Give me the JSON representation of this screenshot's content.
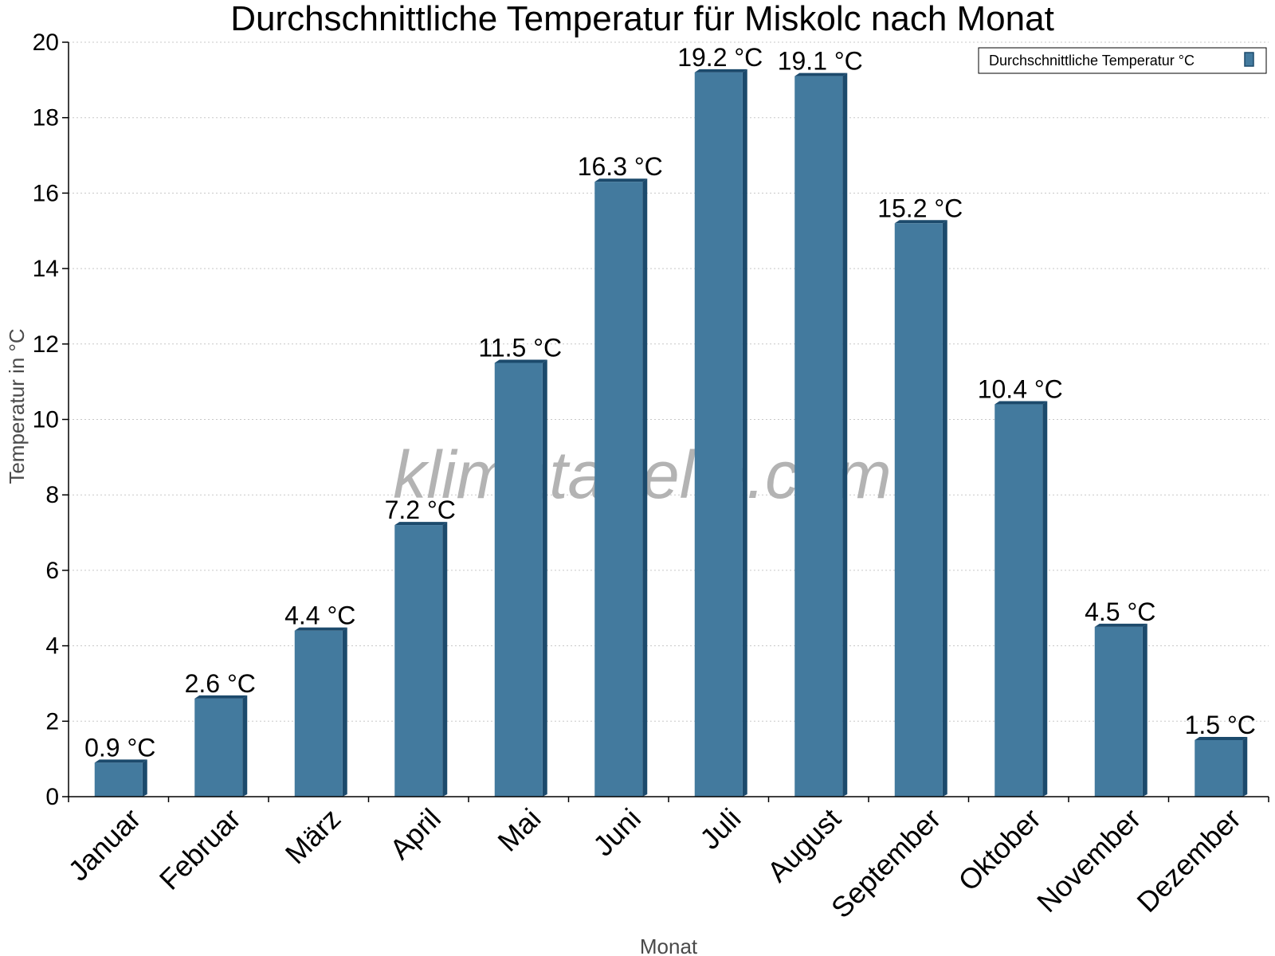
{
  "chart_data": {
    "type": "bar",
    "title": "Durchschnittliche Temperatur für Miskolc nach Monat",
    "xlabel": "Monat",
    "ylabel": "Temperatur in °C",
    "ylim": [
      0,
      20
    ],
    "yticks": [
      0,
      2,
      4,
      6,
      8,
      10,
      12,
      14,
      16,
      18,
      20
    ],
    "grid": true,
    "legend_position": "top-right",
    "categories": [
      "Januar",
      "Februar",
      "März",
      "April",
      "Mai",
      "Juni",
      "Juli",
      "August",
      "September",
      "Oktober",
      "November",
      "Dezember"
    ],
    "series": [
      {
        "name": "Durchschnittliche Temperatur °C",
        "values": [
          0.9,
          2.6,
          4.4,
          7.2,
          11.5,
          16.3,
          19.2,
          19.1,
          15.2,
          10.4,
          4.5,
          1.5
        ],
        "labels": [
          "0.9 °C",
          "2.6 °C",
          "4.4 °C",
          "7.2 °C",
          "11.5 °C",
          "16.3 °C",
          "19.2 °C",
          "19.1 °C",
          "15.2 °C",
          "10.4 °C",
          "4.5 °C",
          "1.5 °C"
        ]
      }
    ],
    "colors": {
      "bar": "#437a9e",
      "bar_side": "#1c4a6c",
      "gridline": "#c8c8c8"
    }
  },
  "watermark": "klimatabelle.com"
}
